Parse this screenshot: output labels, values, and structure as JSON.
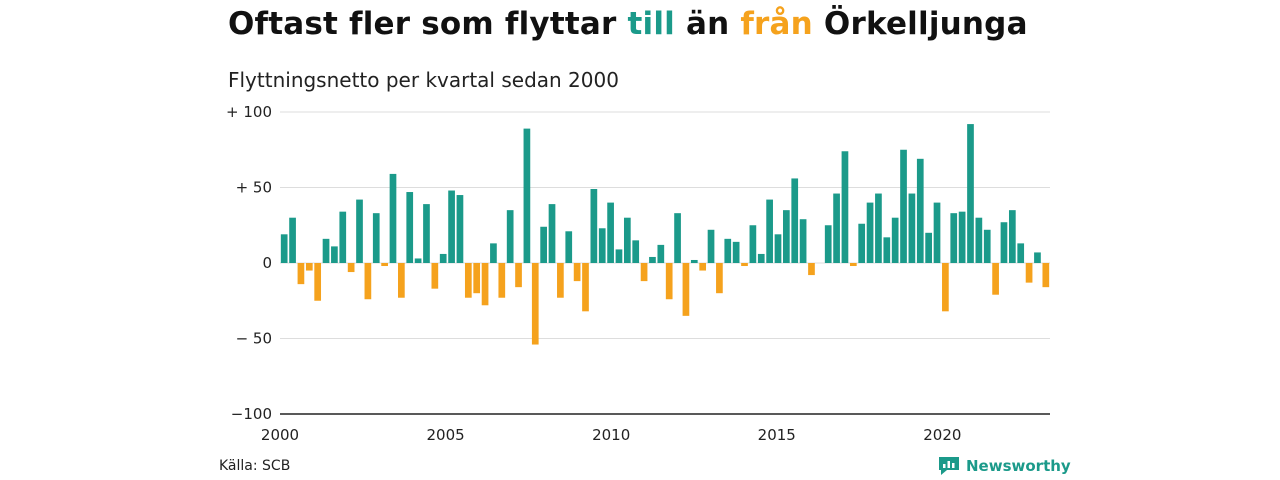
{
  "header": {
    "title_pre": "Oftast fler som flyttar ",
    "title_in": "till",
    "title_mid": " än ",
    "title_out": "från",
    "title_post": " Örkelljunga",
    "subtitle": "Flyttningsnetto per kvartal sedan 2000"
  },
  "footer": {
    "source": "Källa: SCB",
    "brand": "Newsworthy"
  },
  "colors": {
    "positive": "#1b9a8a",
    "negative": "#f5a21d",
    "grid": "#dddddd"
  },
  "chart_data": {
    "type": "bar",
    "title": "Oftast fler som flyttar till än från Örkelljunga",
    "subtitle": "Flyttningsnetto per kvartal sedan 2000",
    "x_start": "2000-Q1",
    "ylim": [
      -100,
      100
    ],
    "yticks": [
      100,
      50,
      0,
      -50,
      -100
    ],
    "ytick_labels": [
      "+ 100",
      "+  50",
      "0",
      "− 50",
      "−100"
    ],
    "xticks": [
      2000,
      2005,
      2010,
      2015,
      2020
    ],
    "xlim": [
      2000,
      2023.25
    ],
    "grid": true,
    "values": [
      19,
      30,
      -14,
      -5,
      -25,
      16,
      11,
      34,
      -6,
      42,
      -24,
      33,
      -2,
      59,
      -23,
      47,
      3,
      39,
      -17,
      6,
      48,
      45,
      -23,
      -20,
      -28,
      13,
      -23,
      35,
      -16,
      89,
      -54,
      24,
      39,
      -23,
      21,
      -12,
      -32,
      49,
      23,
      40,
      9,
      30,
      15,
      -12,
      4,
      12,
      -24,
      33,
      -35,
      2,
      -5,
      22,
      -20,
      16,
      14,
      -2,
      25,
      6,
      42,
      19,
      35,
      56,
      29,
      -8,
      0,
      25,
      46,
      74,
      -2,
      26,
      40,
      46,
      17,
      30,
      75,
      46,
      69,
      20,
      40,
      -32,
      33,
      34,
      92,
      30,
      22,
      -21,
      27,
      35,
      13,
      -13,
      7,
      -16
    ]
  }
}
